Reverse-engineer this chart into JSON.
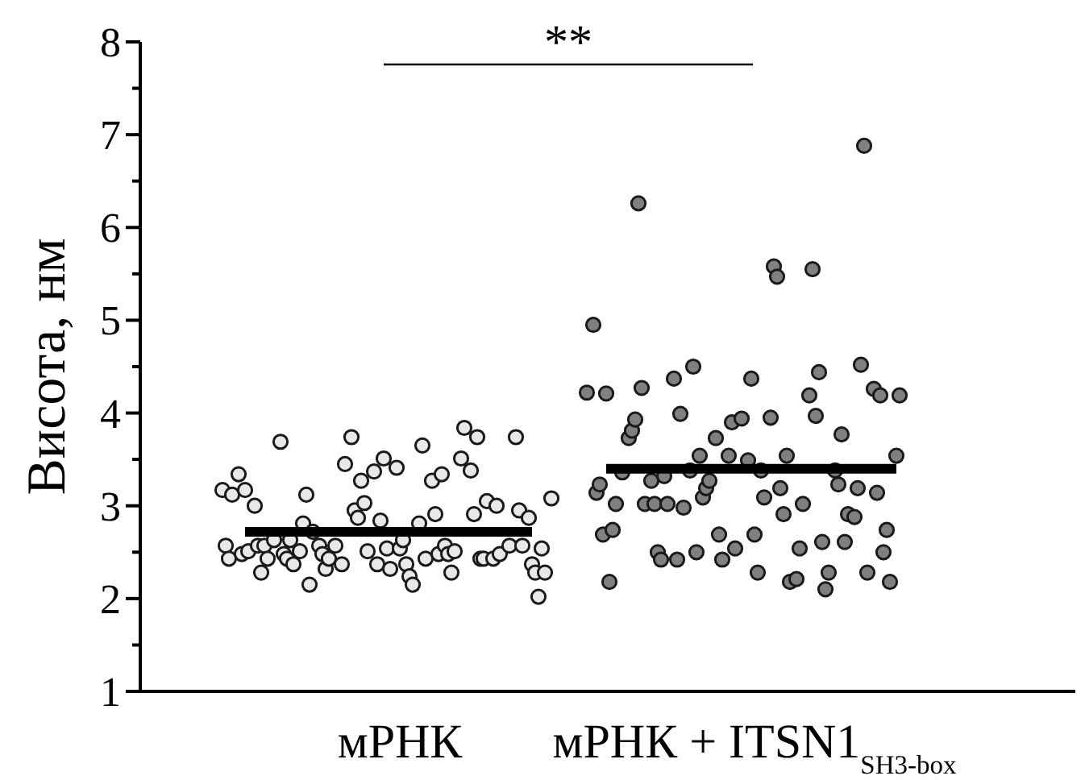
{
  "chart_data": {
    "type": "scatter",
    "ylabel": "Висота, нм",
    "annotations": [
      "**"
    ],
    "marker": "circle",
    "categories": [
      null,
      null,
      null,
      null,
      null,
      null,
      null,
      null,
      null,
      null,
      null,
      null,
      null,
      null,
      null,
      null,
      null,
      null,
      null,
      null,
      null,
      null,
      null,
      null,
      null,
      null,
      null,
      null,
      null,
      null,
      null,
      null,
      null,
      null,
      null,
      null,
      null,
      null,
      null,
      null,
      null,
      null,
      null,
      null,
      null,
      null,
      null,
      null,
      null,
      null,
      null,
      null,
      null,
      null,
      null,
      null,
      null,
      null,
      null,
      null,
      null,
      null,
      null,
      null,
      null,
      null,
      null,
      null,
      null,
      null,
      null,
      null,
      null,
      null,
      null,
      null,
      null,
      null,
      null,
      null,
      "мРНК",
      null,
      null,
      null,
      null,
      null,
      null,
      null,
      null,
      null,
      null,
      null,
      null,
      null,
      null,
      null,
      null,
      null,
      null,
      null,
      null,
      null,
      null,
      null,
      null,
      null,
      null,
      null,
      null,
      null,
      null,
      null,
      null,
      null,
      null,
      null,
      null,
      null,
      null,
      null,
      null,
      null,
      null,
      null,
      null,
      null,
      null,
      null,
      null,
      null,
      null,
      null,
      null,
      null,
      null,
      null,
      null,
      null,
      null,
      null,
      null,
      null,
      null,
      null,
      null,
      null,
      null,
      null,
      null,
      null,
      null,
      null,
      null,
      null,
      null,
      null,
      null,
      null,
      null,
      null,
      null,
      null,
      null,
      null,
      null,
      null,
      null,
      null,
      null,
      null,
      null,
      null,
      null,
      null,
      null,
      null,
      null,
      null,
      null,
      null,
      null,
      null,
      null,
      null,
      null,
      null,
      null,
      null,
      null,
      null,
      "мРНК + ITSN1$_{SH3-box}$",
      null,
      null,
      null,
      null,
      null,
      null,
      null,
      null,
      null,
      null,
      null,
      null,
      null,
      null,
      null,
      null,
      null,
      null,
      null,
      null,
      null,
      null,
      null,
      null,
      null,
      null,
      null,
      null,
      null,
      null,
      null,
      null,
      null,
      null,
      null,
      null,
      null,
      null,
      null,
      null,
      null,
      null,
      null,
      null,
      null,
      null,
      null,
      null,
      null,
      null
    ],
    "ylim": [
      1,
      8
    ],
    "yticks": [
      1,
      {
        "value": 1.5,
        "label": null
      },
      2,
      {
        "value": 2.5,
        "label": null
      },
      3,
      {
        "value": 3.5,
        "label": null
      },
      4,
      {
        "value": 4.5,
        "label": null
      },
      5,
      {
        "value": 5.5,
        "label": null
      },
      6,
      {
        "value": 6.5,
        "label": null
      },
      7,
      {
        "value": 7.5,
        "label": null
      },
      8
    ],
    "series": [
      {
        "color": "#e8e8e8",
        "values": [
          null,
          null,
          null,
          null,
          null,
          null,
          null,
          null,
          null,
          null,
          null,
          null,
          null,
          null,
          null,
          null,
          null,
          null,
          null,
          null,
          null,
          null,
          null,
          null,
          null,
          3.17,
          2.57,
          2.43,
          3.12,
          null,
          3.34,
          2.48,
          3.17,
          2.51,
          null,
          3.0,
          2.57,
          2.28,
          2.57,
          2.43,
          null,
          2.63,
          null,
          3.69,
          2.48,
          2.43,
          2.63,
          2.37,
          null,
          2.51,
          2.81,
          3.12,
          2.15,
          2.72,
          null,
          2.57,
          2.48,
          2.32,
          2.43,
          null,
          2.57,
          null,
          2.37,
          3.45,
          null,
          3.74,
          2.95,
          2.87,
          3.27,
          3.03,
          2.51,
          null,
          3.37,
          2.37,
          2.84,
          3.51,
          2.54,
          2.32,
          null,
          3.41,
          2.54,
          2.63,
          2.37,
          2.24,
          2.15,
          null,
          2.81,
          3.65,
          2.43,
          null,
          3.27,
          2.91,
          2.48,
          3.34,
          2.57,
          2.48,
          2.28,
          2.51,
          null,
          3.51,
          3.84,
          null,
          3.38,
          2.91,
          3.74,
          2.43,
          2.43,
          3.05,
          null,
          2.43,
          3.0,
          2.48,
          null,
          null,
          2.57,
          null,
          3.74,
          2.95,
          2.57,
          null,
          2.87,
          2.37,
          2.28,
          2.02,
          2.54,
          2.28,
          null,
          3.08,
          null,
          null,
          null,
          null,
          null,
          null,
          null,
          null,
          null,
          null,
          null,
          null,
          null,
          null,
          null,
          null,
          null,
          null,
          null,
          null,
          null,
          null,
          null,
          null,
          null,
          null,
          null,
          null,
          null,
          null,
          null,
          null,
          null,
          null,
          null,
          null,
          null,
          null,
          null,
          null,
          null,
          null,
          null,
          null,
          null,
          null,
          null,
          null,
          null,
          null,
          null,
          null,
          null,
          null,
          null,
          null,
          null,
          null,
          null,
          null,
          null,
          null,
          null,
          null,
          null,
          null,
          null,
          null,
          null,
          null,
          null,
          null,
          null,
          null,
          null,
          null,
          null,
          null,
          null,
          null,
          null,
          null,
          null,
          null,
          null,
          null,
          null,
          null,
          null,
          null,
          null,
          null,
          null,
          null,
          null,
          null,
          null,
          null,
          null,
          null,
          null,
          null,
          null,
          null,
          null,
          null,
          null,
          null,
          null,
          null,
          null,
          null,
          null
        ]
      },
      {
        "color": "#808080",
        "values": [
          null,
          null,
          null,
          null,
          null,
          null,
          null,
          null,
          null,
          null,
          null,
          null,
          null,
          null,
          null,
          null,
          null,
          null,
          null,
          null,
          null,
          null,
          null,
          null,
          null,
          null,
          null,
          null,
          null,
          null,
          null,
          null,
          null,
          null,
          null,
          null,
          null,
          null,
          null,
          null,
          null,
          null,
          null,
          null,
          null,
          null,
          null,
          null,
          null,
          null,
          null,
          null,
          null,
          null,
          null,
          null,
          null,
          null,
          null,
          null,
          null,
          null,
          null,
          null,
          null,
          null,
          null,
          null,
          null,
          null,
          null,
          null,
          null,
          null,
          null,
          null,
          null,
          null,
          null,
          null,
          null,
          null,
          null,
          null,
          null,
          null,
          null,
          null,
          null,
          null,
          null,
          null,
          null,
          null,
          null,
          null,
          null,
          null,
          null,
          null,
          null,
          null,
          null,
          null,
          null,
          null,
          null,
          null,
          null,
          null,
          null,
          null,
          null,
          null,
          null,
          null,
          null,
          null,
          null,
          null,
          null,
          null,
          null,
          null,
          null,
          null,
          null,
          null,
          null,
          null,
          null,
          null,
          null,
          null,
          null,
          null,
          null,
          null,
          4.22,
          null,
          4.95,
          3.14,
          3.23,
          2.69,
          4.21,
          2.18,
          2.74,
          3.02,
          null,
          3.36,
          null,
          3.73,
          3.81,
          3.93,
          6.26,
          4.27,
          3.02,
          null,
          3.27,
          3.02,
          2.5,
          2.42,
          3.32,
          3.02,
          null,
          4.37,
          2.42,
          3.99,
          2.98,
          null,
          3.38,
          4.5,
          2.5,
          3.54,
          3.09,
          3.19,
          3.27,
          null,
          3.73,
          2.69,
          2.42,
          null,
          3.54,
          3.9,
          2.54,
          null,
          3.94,
          null,
          3.49,
          4.37,
          2.69,
          2.28,
          3.38,
          3.09,
          null,
          3.95,
          5.58,
          5.47,
          3.19,
          2.91,
          3.54,
          2.18,
          null,
          2.21,
          2.54,
          3.02,
          null,
          4.19,
          5.55,
          3.97,
          4.44,
          2.61,
          2.1,
          2.28,
          null,
          3.38,
          3.23,
          3.77,
          2.61,
          2.91,
          null,
          2.88,
          3.19,
          4.52,
          6.88,
          2.28,
          null,
          4.26,
          3.14,
          4.19,
          2.5,
          2.74,
          2.18,
          null,
          3.54,
          4.19,
          null,
          null,
          null,
          null,
          null
        ]
      },
      {
        "type": "line",
        "color": "#000000",
        "marker": "none",
        "values": [
          null,
          null,
          null,
          null,
          null,
          null,
          null,
          null,
          null,
          null,
          null,
          null,
          null,
          null,
          null,
          null,
          null,
          null,
          null,
          null,
          null,
          null,
          null,
          null,
          null,
          null,
          null,
          null,
          null,
          null,
          null,
          null,
          2.72,
          2.72,
          2.72,
          2.72,
          2.72,
          2.72,
          2.72,
          2.72,
          2.72,
          2.72,
          2.72,
          2.72,
          2.72,
          2.72,
          2.72,
          2.72,
          2.72,
          2.72,
          2.72,
          2.72,
          2.72,
          2.72,
          2.72,
          2.72,
          2.72,
          2.72,
          2.72,
          2.72,
          2.72,
          2.72,
          2.72,
          2.72,
          2.72,
          2.72,
          2.72,
          2.72,
          2.72,
          2.72,
          2.72,
          2.72,
          2.72,
          2.72,
          2.72,
          2.72,
          2.72,
          2.72,
          2.72,
          2.72,
          2.72,
          2.72,
          2.72,
          2.72,
          2.72,
          2.72,
          2.72,
          2.72,
          2.72,
          2.72,
          2.72,
          2.72,
          2.72,
          2.72,
          2.72,
          2.72,
          2.72,
          2.72,
          2.72,
          2.72,
          2.72,
          2.72,
          2.72,
          2.72,
          2.72,
          2.72,
          2.72,
          2.72,
          2.72,
          2.72,
          2.72,
          2.72,
          2.72,
          2.72,
          2.72,
          2.72,
          2.72,
          2.72,
          2.72,
          2.72,
          2.72,
          2.72,
          null,
          null,
          null,
          null,
          null,
          null,
          null,
          null,
          null,
          null,
          null,
          null,
          null,
          null,
          null,
          null,
          null,
          null,
          null,
          null,
          null,
          null,
          null,
          null,
          null,
          null,
          null,
          null,
          null,
          null,
          null,
          null,
          null,
          null,
          null,
          null,
          null,
          null,
          null,
          null,
          null,
          null,
          null,
          null,
          null,
          null,
          null,
          null,
          null,
          null,
          null,
          null,
          null,
          null,
          null,
          null,
          null,
          null,
          null,
          null,
          null,
          null,
          null,
          null,
          null,
          null,
          null,
          null,
          null,
          null,
          null,
          null,
          null,
          null,
          null,
          null,
          null,
          null,
          null,
          null,
          null,
          null,
          null,
          null,
          null,
          null,
          null,
          null,
          null,
          null,
          null,
          null,
          null,
          null,
          null,
          null,
          null,
          null,
          null,
          null,
          null,
          null,
          null,
          null,
          null,
          null,
          null,
          null,
          null,
          null,
          null,
          null,
          null,
          null,
          null,
          null,
          null,
          null,
          null
        ]
      },
      {
        "type": "line",
        "color": "#000000",
        "marker": "none",
        "values": [
          null,
          null,
          null,
          null,
          null,
          null,
          null,
          null,
          null,
          null,
          null,
          null,
          null,
          null,
          null,
          null,
          null,
          null,
          null,
          null,
          null,
          null,
          null,
          null,
          null,
          null,
          null,
          null,
          null,
          null,
          null,
          null,
          null,
          null,
          null,
          null,
          null,
          null,
          null,
          null,
          null,
          null,
          null,
          null,
          null,
          null,
          null,
          null,
          null,
          null,
          null,
          null,
          null,
          null,
          null,
          null,
          null,
          null,
          null,
          null,
          null,
          null,
          null,
          null,
          null,
          null,
          null,
          null,
          null,
          null,
          null,
          null,
          null,
          null,
          null,
          null,
          null,
          null,
          null,
          null,
          null,
          null,
          null,
          null,
          null,
          null,
          null,
          null,
          null,
          null,
          null,
          null,
          null,
          null,
          null,
          null,
          null,
          null,
          null,
          null,
          null,
          null,
          null,
          null,
          null,
          null,
          null,
          null,
          null,
          null,
          null,
          null,
          null,
          null,
          null,
          null,
          null,
          null,
          null,
          null,
          null,
          null,
          null,
          null,
          null,
          null,
          null,
          null,
          null,
          null,
          null,
          null,
          null,
          null,
          null,
          null,
          null,
          null,
          null,
          null,
          null,
          null,
          null,
          null,
          3.4,
          3.4,
          3.4,
          3.4,
          3.4,
          3.4,
          3.4,
          3.4,
          3.4,
          3.4,
          3.4,
          3.4,
          3.4,
          3.4,
          3.4,
          3.4,
          3.4,
          3.4,
          3.4,
          3.4,
          3.4,
          3.4,
          3.4,
          3.4,
          3.4,
          3.4,
          3.4,
          3.4,
          3.4,
          3.4,
          3.4,
          3.4,
          3.4,
          3.4,
          3.4,
          3.4,
          3.4,
          3.4,
          3.4,
          3.4,
          3.4,
          3.4,
          3.4,
          3.4,
          3.4,
          3.4,
          3.4,
          3.4,
          3.4,
          3.4,
          3.4,
          3.4,
          3.4,
          3.4,
          3.4,
          3.4,
          3.4,
          3.4,
          3.4,
          3.4,
          3.4,
          3.4,
          3.4,
          3.4,
          3.4,
          3.4,
          3.4,
          3.4,
          3.4,
          3.4,
          3.4,
          3.4,
          3.4,
          3.4,
          3.4,
          3.4,
          3.4,
          3.4,
          3.4,
          3.4,
          3.4,
          3.4,
          3.4,
          3.4,
          3.4,
          3.4,
          3.4,
          3.4,
          3.4,
          3.4,
          3.4,
          null,
          null,
          null,
          null,
          null,
          null
        ]
      }
    ]
  }
}
